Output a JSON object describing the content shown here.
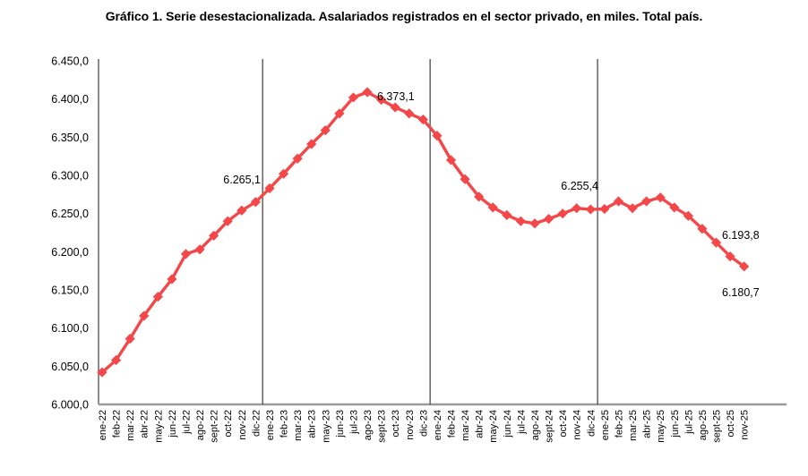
{
  "title": "Gráfico 1. Serie desestacionalizada. Asalariados registrados en el sector privado, en miles. Total país.",
  "chart_data": {
    "type": "line",
    "marker_shape": "diamond",
    "series_name": "Asalariados registrados sector privado (serie desestacionalizada, en miles)",
    "series_color": "#f4474a",
    "axis_color": "#9a9a9a",
    "separator_color": "#3c3c3c",
    "grid": "off",
    "legend": "none",
    "ylim": [
      6000,
      6450
    ],
    "y_tick_step": 50,
    "y_tick_labels": [
      "6.000,0",
      "6.050,0",
      "6.100,0",
      "6.150,0",
      "6.200,0",
      "6.250,0",
      "6.300,0",
      "6.350,0",
      "6.400,0",
      "6.450,0"
    ],
    "categories": [
      "ene-22",
      "feb-22",
      "mar-22",
      "abr-22",
      "may-22",
      "jun-22",
      "jul-22",
      "ago-22",
      "sept-22",
      "oct-22",
      "nov-22",
      "dic-22",
      "ene-23",
      "feb-23",
      "mar-23",
      "abr-23",
      "may-23",
      "jun-23",
      "jul-23",
      "ago-23",
      "sept-23",
      "oct-23",
      "nov-23",
      "dic-23",
      "ene-24",
      "feb-24",
      "mar-24",
      "abr-24",
      "may-24",
      "jun-24",
      "jul-24",
      "ago-24",
      "sept-24",
      "oct-24",
      "nov-24",
      "dic-24",
      "ene-25",
      "feb-25",
      "mar-25",
      "abr-25",
      "may-25",
      "jun-25",
      "jul-25",
      "ago-25",
      "sept-25",
      "oct-25",
      "nov-25"
    ],
    "values": [
      6042,
      6058,
      6086,
      6116,
      6141,
      6164,
      6197,
      6203,
      6221,
      6240,
      6254,
      6265.1,
      6283,
      6302,
      6322,
      6341,
      6359,
      6381,
      6402,
      6409,
      6399,
      6389,
      6381,
      6373.1,
      6352,
      6320,
      6295,
      6272,
      6258,
      6248,
      6240,
      6237,
      6243,
      6250,
      6257,
      6255.4,
      6256,
      6266,
      6257,
      6266,
      6271,
      6258,
      6247,
      6230,
      6212,
      6193.8,
      6180.7
    ],
    "year_separators_after": [
      "dic-22",
      "dic-23",
      "dic-24"
    ],
    "point_labels": [
      {
        "category": "dic-22",
        "text": "6.265,1"
      },
      {
        "category": "dic-23",
        "text": "6.373,1"
      },
      {
        "category": "dic-24",
        "text": "6.255,4"
      },
      {
        "category": "oct-25",
        "text": "6.193,8"
      },
      {
        "category": "nov-25",
        "text": "6.180,7"
      }
    ]
  }
}
